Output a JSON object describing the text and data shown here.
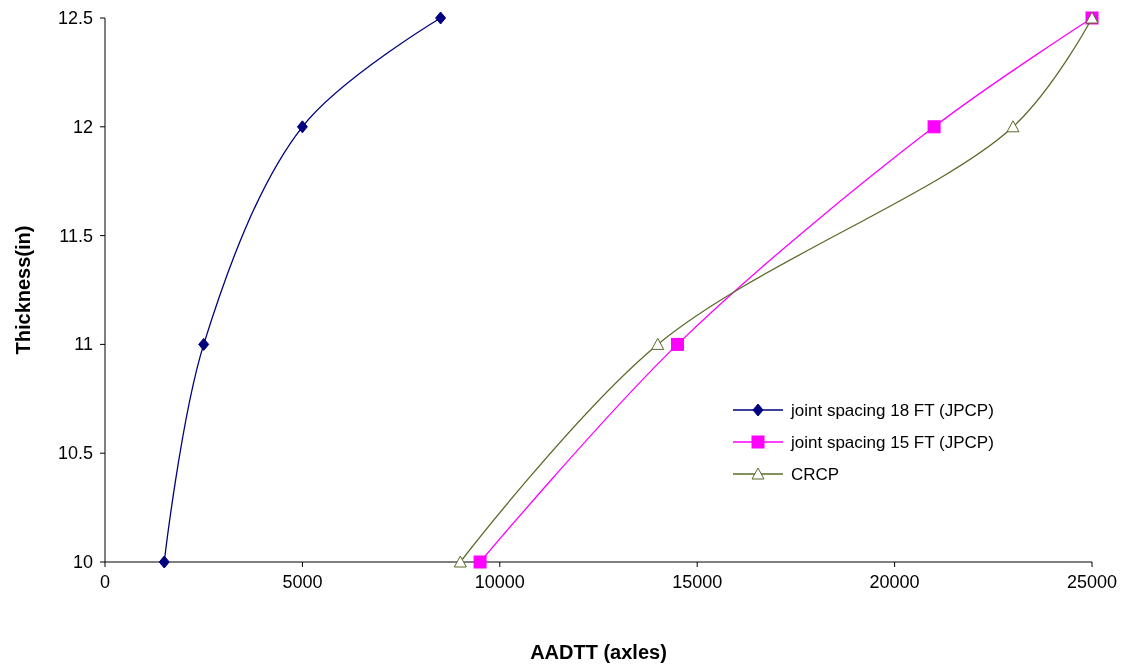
{
  "chart_data": {
    "type": "line",
    "xlabel": "AADTT (axles)",
    "ylabel": "Thickness(in)",
    "xlim": [
      0,
      25000
    ],
    "xticks": [
      0,
      5000,
      10000,
      15000,
      20000,
      25000
    ],
    "ylim": [
      10,
      12.5
    ],
    "yticks": [
      10,
      10.5,
      11,
      11.5,
      12,
      12.5
    ],
    "grid": false,
    "legend": "right",
    "line_style": "solid",
    "series": [
      {
        "name": "joint spacing 18 FT (JPCP)",
        "color": "#000080",
        "marker": "diamond",
        "x": [
          1500,
          2500,
          5000,
          8500
        ],
        "values": [
          10,
          11,
          12,
          12.5
        ]
      },
      {
        "name": "joint spacing 15 FT (JPCP)",
        "color": "#ff00ff",
        "marker": "square",
        "x": [
          9500,
          14500,
          21000,
          25000
        ],
        "values": [
          10,
          11,
          12,
          12.5
        ]
      },
      {
        "name": "CRCP",
        "color": "#5a6b2a",
        "marker": "triangle",
        "x": [
          9000,
          14000,
          23000,
          25000
        ],
        "values": [
          10,
          11,
          12,
          12.5
        ]
      }
    ]
  }
}
